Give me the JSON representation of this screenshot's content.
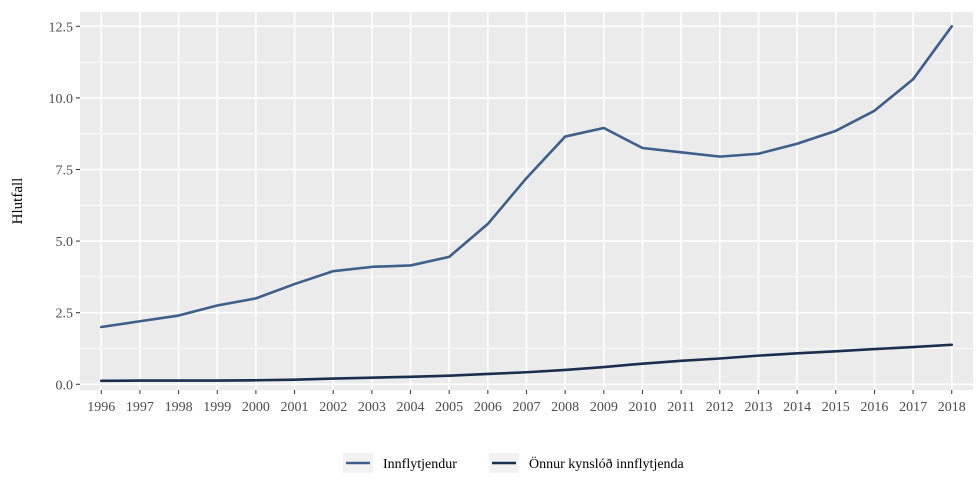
{
  "chart_data": {
    "type": "line",
    "title": "",
    "xlabel": "",
    "ylabel": "Hlutfall",
    "x": [
      1996,
      1997,
      1998,
      1999,
      2000,
      2001,
      2002,
      2003,
      2004,
      2005,
      2006,
      2007,
      2008,
      2009,
      2010,
      2011,
      2012,
      2013,
      2014,
      2015,
      2016,
      2017,
      2018
    ],
    "x_tick_labels": [
      "1996",
      "1997",
      "1998",
      "1999",
      "2000",
      "2001",
      "2002",
      "2003",
      "2004",
      "2005",
      "2006",
      "2007",
      "2008",
      "2009",
      "2010",
      "2011",
      "2012",
      "2013",
      "2014",
      "2015",
      "2016",
      "2017",
      "2018"
    ],
    "y_ticks": [
      0.0,
      2.5,
      5.0,
      7.5,
      10.0,
      12.5
    ],
    "y_tick_labels": [
      "0.0",
      "2.5",
      "5.0",
      "7.5",
      "10.0",
      "12.5"
    ],
    "ylim": [
      -0.2,
      13.0
    ],
    "grid": true,
    "legend_position": "bottom",
    "background": "#ebebeb",
    "series": [
      {
        "name": "Innflytjendur",
        "color": "#3e5f8a",
        "values": [
          2.0,
          2.2,
          2.4,
          2.75,
          3.0,
          3.5,
          3.95,
          4.1,
          4.15,
          4.45,
          5.6,
          7.2,
          8.65,
          8.95,
          8.25,
          8.1,
          7.95,
          8.05,
          8.4,
          8.85,
          9.55,
          10.65,
          12.5
        ]
      },
      {
        "name": "Önnur kynslóð innflytjenda",
        "color": "#1a2f4e",
        "values": [
          0.12,
          0.13,
          0.13,
          0.13,
          0.14,
          0.16,
          0.2,
          0.23,
          0.26,
          0.3,
          0.36,
          0.42,
          0.5,
          0.6,
          0.72,
          0.82,
          0.9,
          1.0,
          1.08,
          1.15,
          1.23,
          1.3,
          1.38
        ]
      }
    ]
  }
}
